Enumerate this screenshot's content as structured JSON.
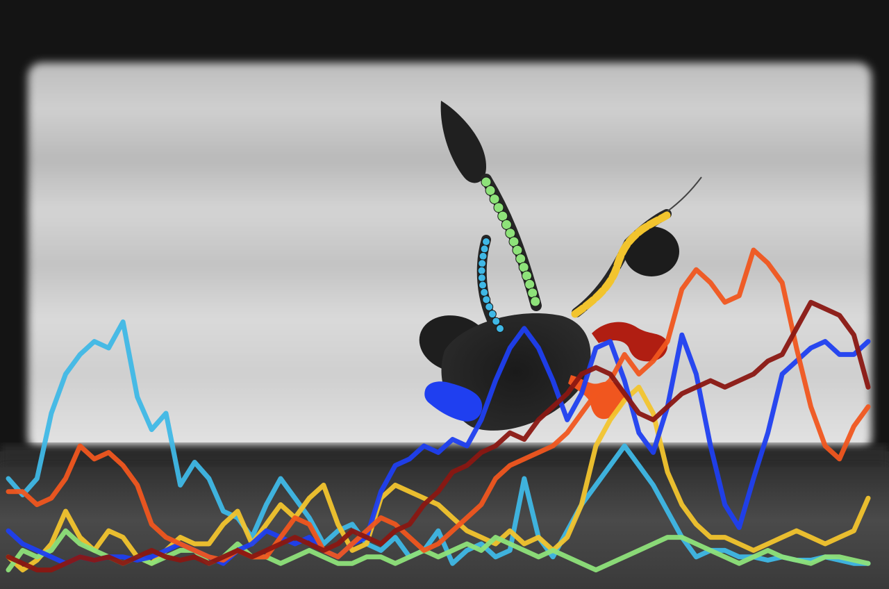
{
  "scene": {
    "subject": "zebrafish-larva",
    "background": "grayscale-tank",
    "tracked_parts": [
      {
        "name": "tail",
        "color": "#8ee27a"
      },
      {
        "name": "left-fin",
        "color": "#3fb8e6"
      },
      {
        "name": "right-fin",
        "color": "#f2c42e"
      },
      {
        "name": "upper-right-limb",
        "color": "#b01e12"
      },
      {
        "name": "lower-right-limb",
        "color": "#f0561f"
      },
      {
        "name": "lower-left-limb",
        "color": "#1f3ff0"
      }
    ]
  },
  "trace_overlay": {
    "series": [
      {
        "color": "#3fb8e6",
        "values": [
          0.3,
          0.25,
          0.3,
          0.5,
          0.62,
          0.68,
          0.72,
          0.7,
          0.78,
          0.55,
          0.45,
          0.5,
          0.28,
          0.35,
          0.3,
          0.2,
          0.18,
          0.12,
          0.22,
          0.3,
          0.24,
          0.18,
          0.1,
          0.14,
          0.16,
          0.1,
          0.08,
          0.12,
          0.06,
          0.08,
          0.14,
          0.04,
          0.08,
          0.1,
          0.06,
          0.08,
          0.3,
          0.12,
          0.06,
          0.14,
          0.22,
          0.28,
          0.34,
          0.4,
          0.34,
          0.28,
          0.2,
          0.12,
          0.06,
          0.08,
          0.08,
          0.06,
          0.06,
          0.05,
          0.06,
          0.05,
          0.05,
          0.06,
          0.05,
          0.04,
          0.04
        ]
      },
      {
        "color": "#f2c42e",
        "values": [
          0.06,
          0.02,
          0.05,
          0.1,
          0.2,
          0.12,
          0.08,
          0.14,
          0.12,
          0.06,
          0.04,
          0.08,
          0.12,
          0.1,
          0.1,
          0.16,
          0.2,
          0.1,
          0.16,
          0.22,
          0.18,
          0.24,
          0.28,
          0.16,
          0.08,
          0.1,
          0.24,
          0.28,
          0.26,
          0.24,
          0.22,
          0.18,
          0.14,
          0.12,
          0.1,
          0.14,
          0.1,
          0.12,
          0.08,
          0.12,
          0.22,
          0.4,
          0.48,
          0.54,
          0.58,
          0.5,
          0.32,
          0.22,
          0.16,
          0.12,
          0.12,
          0.1,
          0.08,
          0.1,
          0.12,
          0.14,
          0.12,
          0.1,
          0.12,
          0.14,
          0.24
        ]
      },
      {
        "color": "#8ee27a",
        "values": [
          0.02,
          0.08,
          0.06,
          0.08,
          0.14,
          0.1,
          0.08,
          0.06,
          0.04,
          0.06,
          0.04,
          0.06,
          0.08,
          0.08,
          0.04,
          0.06,
          0.1,
          0.06,
          0.06,
          0.04,
          0.06,
          0.08,
          0.06,
          0.04,
          0.04,
          0.06,
          0.06,
          0.04,
          0.06,
          0.08,
          0.06,
          0.08,
          0.1,
          0.08,
          0.12,
          0.1,
          0.08,
          0.06,
          0.08,
          0.06,
          0.04,
          0.02,
          0.04,
          0.06,
          0.08,
          0.1,
          0.12,
          0.12,
          0.1,
          0.08,
          0.06,
          0.04,
          0.06,
          0.08,
          0.06,
          0.05,
          0.04,
          0.06,
          0.06,
          0.05,
          0.04
        ]
      },
      {
        "color": "#1f3ff0",
        "values": [
          0.14,
          0.1,
          0.08,
          0.06,
          0.04,
          0.06,
          0.05,
          0.06,
          0.06,
          0.05,
          0.06,
          0.08,
          0.1,
          0.08,
          0.06,
          0.04,
          0.08,
          0.1,
          0.14,
          0.12,
          0.1,
          0.12,
          0.08,
          0.06,
          0.1,
          0.12,
          0.26,
          0.34,
          0.36,
          0.4,
          0.38,
          0.42,
          0.4,
          0.48,
          0.6,
          0.7,
          0.76,
          0.7,
          0.6,
          0.48,
          0.56,
          0.7,
          0.72,
          0.6,
          0.44,
          0.38,
          0.52,
          0.74,
          0.62,
          0.4,
          0.22,
          0.15,
          0.3,
          0.44,
          0.62,
          0.66,
          0.7,
          0.72,
          0.68,
          0.68,
          0.72
        ]
      },
      {
        "color": "#f0561f",
        "values": [
          0.26,
          0.26,
          0.22,
          0.24,
          0.3,
          0.4,
          0.36,
          0.38,
          0.34,
          0.28,
          0.16,
          0.12,
          0.1,
          0.08,
          0.06,
          0.05,
          0.08,
          0.06,
          0.06,
          0.12,
          0.18,
          0.16,
          0.08,
          0.06,
          0.1,
          0.14,
          0.18,
          0.16,
          0.12,
          0.08,
          0.1,
          0.14,
          0.18,
          0.22,
          0.3,
          0.34,
          0.36,
          0.38,
          0.4,
          0.44,
          0.5,
          0.56,
          0.6,
          0.68,
          0.62,
          0.66,
          0.72,
          0.88,
          0.94,
          0.9,
          0.84,
          0.86,
          1.0,
          0.96,
          0.9,
          0.7,
          0.52,
          0.4,
          0.36,
          0.46,
          0.52
        ]
      },
      {
        "color": "#8a1712",
        "values": [
          0.06,
          0.04,
          0.02,
          0.02,
          0.04,
          0.06,
          0.05,
          0.06,
          0.04,
          0.06,
          0.08,
          0.06,
          0.05,
          0.06,
          0.04,
          0.06,
          0.08,
          0.06,
          0.08,
          0.1,
          0.12,
          0.1,
          0.08,
          0.1,
          0.14,
          0.12,
          0.1,
          0.14,
          0.16,
          0.22,
          0.26,
          0.32,
          0.34,
          0.38,
          0.4,
          0.44,
          0.42,
          0.48,
          0.52,
          0.56,
          0.62,
          0.64,
          0.62,
          0.56,
          0.5,
          0.48,
          0.52,
          0.56,
          0.58,
          0.6,
          0.58,
          0.6,
          0.62,
          0.66,
          0.68,
          0.76,
          0.84,
          0.82,
          0.8,
          0.74,
          0.58
        ]
      }
    ]
  }
}
